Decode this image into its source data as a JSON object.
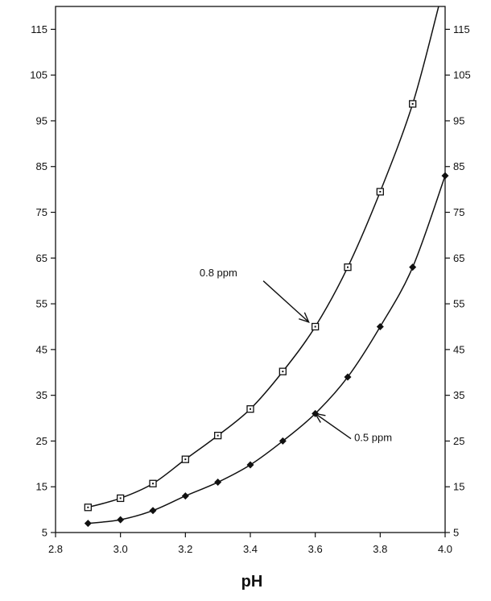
{
  "chart_data": {
    "type": "line",
    "title": "",
    "xlabel": "pH",
    "ylabel": "",
    "xlim": [
      2.8,
      4.0
    ],
    "ylim": [
      5,
      120
    ],
    "x_ticks": [
      2.8,
      3.0,
      3.2,
      3.4,
      3.6,
      3.8,
      4.0
    ],
    "x_tick_labels": [
      "2.8",
      "3.0",
      "3.2",
      "3.4",
      "3.6",
      "3.8",
      "4.0"
    ],
    "y_ticks": [
      5,
      15,
      25,
      35,
      45,
      55,
      65,
      75,
      85,
      95,
      105,
      115
    ],
    "y_tick_labels": [
      "5",
      "15",
      "25",
      "35",
      "45",
      "55",
      "65",
      "75",
      "85",
      "95",
      "105",
      "115"
    ],
    "y_axis_right_mirror": true,
    "grid": false,
    "legend": "none",
    "series": [
      {
        "name": "0.8 ppm",
        "marker": "open-square",
        "x": [
          2.9,
          3.0,
          3.1,
          3.2,
          3.3,
          3.4,
          3.5,
          3.6,
          3.7,
          3.8,
          3.9
        ],
        "y": [
          10.5,
          12.5,
          15.7,
          21,
          26.2,
          32,
          40.2,
          50,
          63,
          79.5,
          98.7
        ],
        "curve_end": [
          3.98,
          120
        ]
      },
      {
        "name": "0.5 ppm",
        "marker": "filled-diamond",
        "x": [
          2.9,
          3.0,
          3.1,
          3.2,
          3.3,
          3.4,
          3.5,
          3.6,
          3.7,
          3.8,
          3.9,
          4.0
        ],
        "y": [
          7,
          7.8,
          9.8,
          13,
          16,
          19.8,
          25,
          31,
          39,
          50,
          63,
          83
        ],
        "curve_end": null
      }
    ],
    "annotations": [
      {
        "text": "0.8 ppm",
        "series": 0,
        "label_at": [
          3.36,
          61
        ],
        "arrow_from": [
          3.44,
          60
        ],
        "arrow_to": [
          3.58,
          51
        ]
      },
      {
        "text": "0.5 ppm",
        "series": 1,
        "label_at": [
          3.72,
          25
        ],
        "arrow_from": [
          3.71,
          25.5
        ],
        "arrow_to": [
          3.6,
          31
        ]
      }
    ],
    "colors": {
      "line": "#111111",
      "background": "#ffffff"
    }
  }
}
